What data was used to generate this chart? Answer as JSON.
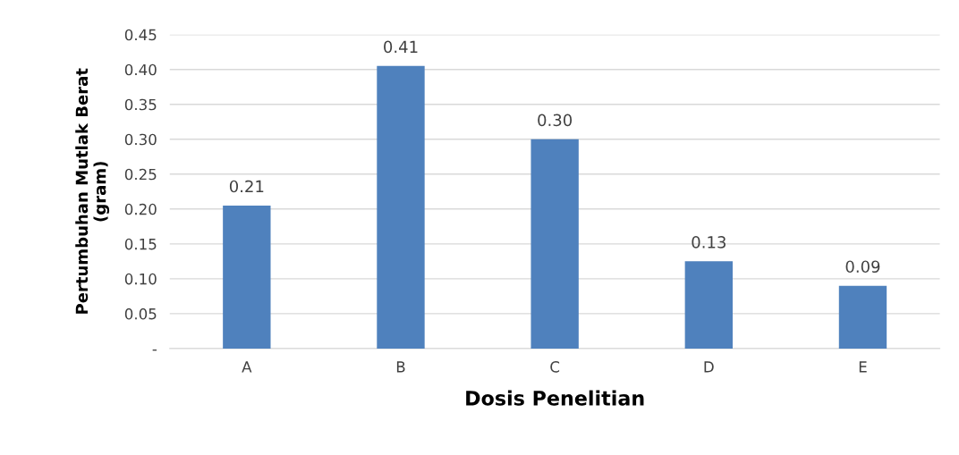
{
  "chart_data": {
    "type": "bar",
    "xlabel": "Dosis Penelitian",
    "ylabel": "Pertumbuhan Mutlak Berat\n(gram)",
    "categories": [
      "A",
      "B",
      "C",
      "D",
      "E"
    ],
    "values": [
      0.205,
      0.405,
      0.3,
      0.125,
      0.09
    ],
    "value_labels": [
      "0.21",
      "0.41",
      "0.30",
      "0.13",
      "0.09"
    ],
    "color": "#4f81bd",
    "ylim": [
      0,
      0.45
    ],
    "yticks": [
      {
        "value": 0,
        "label": "-"
      },
      {
        "value": 0.05,
        "label": "0.05"
      },
      {
        "value": 0.1,
        "label": "0.10"
      },
      {
        "value": 0.15,
        "label": "0.15"
      },
      {
        "value": 0.2,
        "label": "0.20"
      },
      {
        "value": 0.25,
        "label": "0.25"
      },
      {
        "value": 0.3,
        "label": "0.30"
      },
      {
        "value": 0.35,
        "label": "0.35"
      },
      {
        "value": 0.4,
        "label": "0.40"
      },
      {
        "value": 0.45,
        "label": "0.45"
      }
    ],
    "grid": "y",
    "legend": false
  }
}
